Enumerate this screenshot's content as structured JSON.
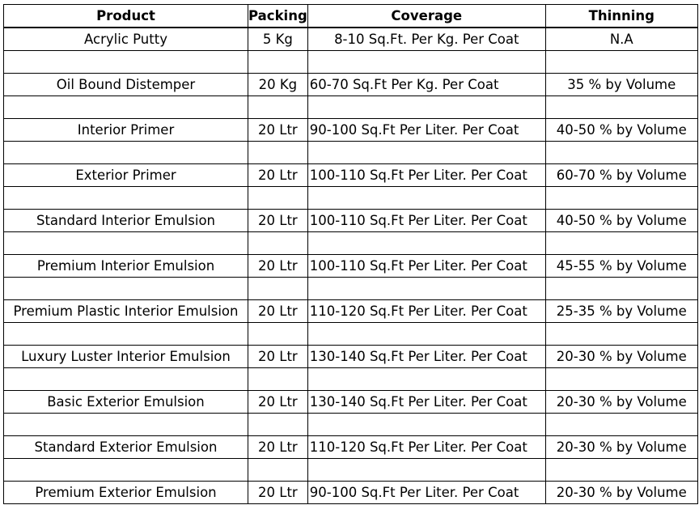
{
  "table": {
    "headers": {
      "product": "Product",
      "packing": "Packing",
      "coverage": "Coverage",
      "thinning": "Thinning"
    },
    "rows": [
      {
        "product": "Acrylic Putty",
        "packing": "5 Kg",
        "coverage": "8-10 Sq.Ft. Per Kg. Per Coat",
        "thinning": "N.A"
      },
      {
        "product": "Oil Bound Distemper",
        "packing": "20 Kg",
        "coverage": "60-70 Sq.Ft Per Kg. Per Coat",
        "thinning": "35 % by Volume"
      },
      {
        "product": "Interior Primer",
        "packing": "20 Ltr",
        "coverage": "90-100 Sq.Ft Per Liter. Per Coat",
        "thinning": "40-50 % by Volume"
      },
      {
        "product": "Exterior Primer",
        "packing": "20 Ltr",
        "coverage": "100-110 Sq.Ft Per Liter. Per Coat",
        "thinning": "60-70 % by Volume"
      },
      {
        "product": "Standard Interior Emulsion",
        "packing": "20 Ltr",
        "coverage": "100-110 Sq.Ft Per Liter. Per Coat",
        "thinning": "40-50 % by Volume"
      },
      {
        "product": "Premium Interior Emulsion",
        "packing": "20 Ltr",
        "coverage": "100-110 Sq.Ft Per Liter. Per Coat",
        "thinning": "45-55 % by Volume"
      },
      {
        "product": "Premium Plastic Interior Emulsion",
        "packing": "20 Ltr",
        "coverage": "110-120 Sq.Ft Per Liter. Per Coat",
        "thinning": "25-35 % by Volume"
      },
      {
        "product": "Luxury Luster Interior Emulsion",
        "packing": "20 Ltr",
        "coverage": "130-140 Sq.Ft Per Liter. Per Coat",
        "thinning": "20-30 % by Volume"
      },
      {
        "product": "Basic Exterior Emulsion",
        "packing": "20 Ltr",
        "coverage": "130-140 Sq.Ft Per Liter. Per Coat",
        "thinning": "20-30 % by Volume"
      },
      {
        "product": "Standard Exterior Emulsion",
        "packing": "20 Ltr",
        "coverage": "110-120 Sq.Ft Per Liter. Per Coat",
        "thinning": "20-30 % by Volume"
      },
      {
        "product": "Premium Exterior Emulsion",
        "packing": "20 Ltr",
        "coverage": "90-100 Sq.Ft Per Liter. Per Coat",
        "thinning": "20-30 % by Volume"
      }
    ]
  }
}
